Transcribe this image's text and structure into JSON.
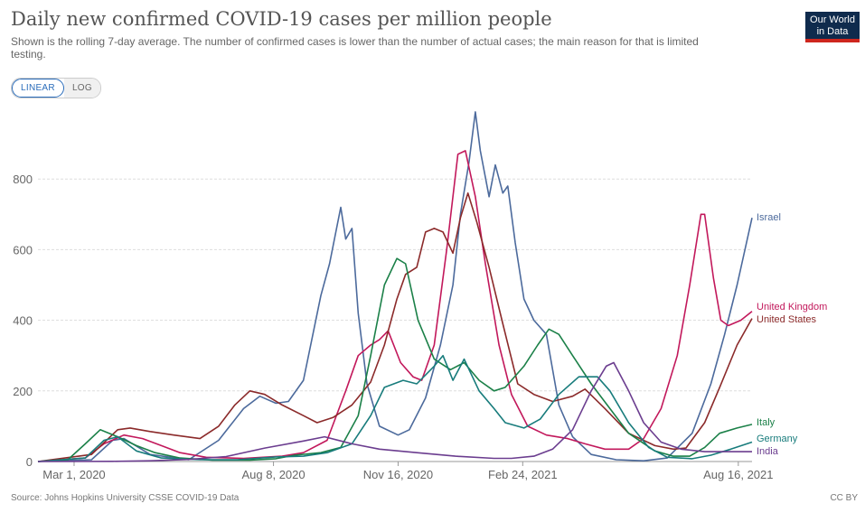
{
  "header": {
    "title": "Daily new confirmed COVID-19 cases per million people",
    "subtitle": "Shown is the rolling 7-day average. The number of confirmed cases is lower than the number of actual cases; the main reason for that is limited testing.",
    "logo_line1": "Our World",
    "logo_line2": "in Data"
  },
  "controls": {
    "linear_label": "LINEAR",
    "log_label": "LOG",
    "selected": "LINEAR"
  },
  "footer": {
    "source": "Source: Johns Hopkins University CSSE COVID-19 Data",
    "license": "CC BY"
  },
  "chart_data": {
    "type": "line",
    "title": "Daily new confirmed COVID-19 cases per million people",
    "ylim": [
      0,
      1000
    ],
    "y_ticks": [
      0,
      200,
      400,
      600,
      800
    ],
    "x_range": [
      "2020-02-01",
      "2021-08-27"
    ],
    "x_ticks": [
      {
        "date": "2020-03-01",
        "label": "Mar 1, 2020"
      },
      {
        "date": "2020-08-08",
        "label": "Aug 8, 2020"
      },
      {
        "date": "2020-11-16",
        "label": "Nov 16, 2020"
      },
      {
        "date": "2021-02-24",
        "label": "Feb 24, 2021"
      },
      {
        "date": "2021-08-16",
        "label": "Aug 16, 2021"
      }
    ],
    "grid": "horizontal dashed",
    "legend": "labels at line ends",
    "series": [
      {
        "name": "Israel",
        "color": "#4c6a9c",
        "points": [
          [
            "2020-02-01",
            0
          ],
          [
            "2020-03-15",
            5
          ],
          [
            "2020-04-01",
            60
          ],
          [
            "2020-04-10",
            65
          ],
          [
            "2020-05-01",
            20
          ],
          [
            "2020-06-01",
            5
          ],
          [
            "2020-06-25",
            60
          ],
          [
            "2020-07-15",
            150
          ],
          [
            "2020-07-28",
            185
          ],
          [
            "2020-08-10",
            165
          ],
          [
            "2020-08-20",
            170
          ],
          [
            "2020-09-01",
            230
          ],
          [
            "2020-09-15",
            470
          ],
          [
            "2020-09-22",
            560
          ],
          [
            "2020-10-01",
            720
          ],
          [
            "2020-10-05",
            630
          ],
          [
            "2020-10-10",
            660
          ],
          [
            "2020-10-15",
            420
          ],
          [
            "2020-10-22",
            220
          ],
          [
            "2020-11-01",
            100
          ],
          [
            "2020-11-16",
            75
          ],
          [
            "2020-11-25",
            90
          ],
          [
            "2020-12-08",
            180
          ],
          [
            "2020-12-20",
            330
          ],
          [
            "2020-12-30",
            500
          ],
          [
            "2021-01-05",
            700
          ],
          [
            "2021-01-12",
            850
          ],
          [
            "2021-01-17",
            990
          ],
          [
            "2021-01-21",
            880
          ],
          [
            "2021-01-28",
            750
          ],
          [
            "2021-02-02",
            840
          ],
          [
            "2021-02-08",
            760
          ],
          [
            "2021-02-12",
            780
          ],
          [
            "2021-02-18",
            620
          ],
          [
            "2021-02-25",
            460
          ],
          [
            "2021-03-05",
            400
          ],
          [
            "2021-03-15",
            360
          ],
          [
            "2021-03-25",
            160
          ],
          [
            "2021-04-05",
            70
          ],
          [
            "2021-04-20",
            20
          ],
          [
            "2021-05-10",
            5
          ],
          [
            "2021-06-01",
            2
          ],
          [
            "2021-06-20",
            10
          ],
          [
            "2021-07-10",
            80
          ],
          [
            "2021-07-25",
            220
          ],
          [
            "2021-08-05",
            360
          ],
          [
            "2021-08-15",
            500
          ],
          [
            "2021-08-27",
            690
          ]
        ]
      },
      {
        "name": "United Kingdom",
        "color": "#c2185b",
        "points": [
          [
            "2020-02-01",
            0
          ],
          [
            "2020-03-10",
            10
          ],
          [
            "2020-03-25",
            50
          ],
          [
            "2020-04-10",
            75
          ],
          [
            "2020-04-25",
            65
          ],
          [
            "2020-05-10",
            45
          ],
          [
            "2020-05-25",
            25
          ],
          [
            "2020-06-15",
            12
          ],
          [
            "2020-07-15",
            9
          ],
          [
            "2020-08-15",
            15
          ],
          [
            "2020-09-01",
            25
          ],
          [
            "2020-09-20",
            60
          ],
          [
            "2020-10-05",
            200
          ],
          [
            "2020-10-15",
            300
          ],
          [
            "2020-10-25",
            330
          ],
          [
            "2020-11-01",
            345
          ],
          [
            "2020-11-08",
            370
          ],
          [
            "2020-11-18",
            280
          ],
          [
            "2020-11-28",
            240
          ],
          [
            "2020-12-05",
            230
          ],
          [
            "2020-12-15",
            330
          ],
          [
            "2020-12-25",
            600
          ],
          [
            "2021-01-03",
            870
          ],
          [
            "2021-01-09",
            880
          ],
          [
            "2021-01-17",
            750
          ],
          [
            "2021-01-25",
            560
          ],
          [
            "2021-02-05",
            330
          ],
          [
            "2021-02-15",
            190
          ],
          [
            "2021-02-28",
            100
          ],
          [
            "2021-03-15",
            75
          ],
          [
            "2021-04-01",
            65
          ],
          [
            "2021-04-15",
            50
          ],
          [
            "2021-05-01",
            35
          ],
          [
            "2021-05-20",
            35
          ],
          [
            "2021-06-01",
            65
          ],
          [
            "2021-06-15",
            150
          ],
          [
            "2021-06-28",
            300
          ],
          [
            "2021-07-08",
            500
          ],
          [
            "2021-07-17",
            700
          ],
          [
            "2021-07-20",
            700
          ],
          [
            "2021-07-27",
            520
          ],
          [
            "2021-08-02",
            400
          ],
          [
            "2021-08-08",
            385
          ],
          [
            "2021-08-18",
            400
          ],
          [
            "2021-08-27",
            425
          ]
        ]
      },
      {
        "name": "United States",
        "color": "#8b2a2a",
        "points": [
          [
            "2020-02-01",
            0
          ],
          [
            "2020-03-15",
            20
          ],
          [
            "2020-04-05",
            90
          ],
          [
            "2020-04-15",
            95
          ],
          [
            "2020-05-01",
            85
          ],
          [
            "2020-05-20",
            75
          ],
          [
            "2020-06-10",
            65
          ],
          [
            "2020-06-25",
            100
          ],
          [
            "2020-07-08",
            160
          ],
          [
            "2020-07-20",
            200
          ],
          [
            "2020-08-01",
            190
          ],
          [
            "2020-08-15",
            160
          ],
          [
            "2020-09-01",
            130
          ],
          [
            "2020-09-12",
            110
          ],
          [
            "2020-09-25",
            125
          ],
          [
            "2020-10-10",
            160
          ],
          [
            "2020-10-25",
            225
          ],
          [
            "2020-11-05",
            330
          ],
          [
            "2020-11-15",
            460
          ],
          [
            "2020-11-22",
            530
          ],
          [
            "2020-12-01",
            550
          ],
          [
            "2020-12-08",
            650
          ],
          [
            "2020-12-15",
            660
          ],
          [
            "2020-12-22",
            650
          ],
          [
            "2020-12-30",
            590
          ],
          [
            "2021-01-05",
            690
          ],
          [
            "2021-01-11",
            760
          ],
          [
            "2021-01-18",
            680
          ],
          [
            "2021-01-28",
            550
          ],
          [
            "2021-02-08",
            390
          ],
          [
            "2021-02-20",
            220
          ],
          [
            "2021-03-05",
            190
          ],
          [
            "2021-03-20",
            170
          ],
          [
            "2021-04-05",
            185
          ],
          [
            "2021-04-15",
            205
          ],
          [
            "2021-05-01",
            150
          ],
          [
            "2021-05-20",
            80
          ],
          [
            "2021-06-10",
            45
          ],
          [
            "2021-06-25",
            35
          ],
          [
            "2021-07-05",
            38
          ],
          [
            "2021-07-20",
            110
          ],
          [
            "2021-08-01",
            210
          ],
          [
            "2021-08-15",
            330
          ],
          [
            "2021-08-27",
            405
          ]
        ]
      },
      {
        "name": "Italy",
        "color": "#1b8048",
        "points": [
          [
            "2020-02-01",
            0
          ],
          [
            "2020-02-25",
            5
          ],
          [
            "2020-03-10",
            50
          ],
          [
            "2020-03-22",
            90
          ],
          [
            "2020-04-05",
            70
          ],
          [
            "2020-04-20",
            45
          ],
          [
            "2020-05-05",
            25
          ],
          [
            "2020-05-25",
            10
          ],
          [
            "2020-06-20",
            4
          ],
          [
            "2020-07-20",
            4
          ],
          [
            "2020-08-10",
            8
          ],
          [
            "2020-08-25",
            18
          ],
          [
            "2020-09-15",
            25
          ],
          [
            "2020-10-01",
            40
          ],
          [
            "2020-10-15",
            130
          ],
          [
            "2020-10-25",
            300
          ],
          [
            "2020-11-05",
            500
          ],
          [
            "2020-11-15",
            575
          ],
          [
            "2020-11-22",
            560
          ],
          [
            "2020-12-02",
            400
          ],
          [
            "2020-12-15",
            290
          ],
          [
            "2020-12-28",
            260
          ],
          [
            "2021-01-08",
            280
          ],
          [
            "2021-01-20",
            230
          ],
          [
            "2021-02-01",
            200
          ],
          [
            "2021-02-10",
            210
          ],
          [
            "2021-02-25",
            270
          ],
          [
            "2021-03-08",
            330
          ],
          [
            "2021-03-17",
            375
          ],
          [
            "2021-03-25",
            360
          ],
          [
            "2021-04-05",
            300
          ],
          [
            "2021-04-20",
            220
          ],
          [
            "2021-05-05",
            150
          ],
          [
            "2021-05-20",
            80
          ],
          [
            "2021-06-10",
            30
          ],
          [
            "2021-06-25",
            15
          ],
          [
            "2021-07-08",
            15
          ],
          [
            "2021-07-20",
            40
          ],
          [
            "2021-08-01",
            80
          ],
          [
            "2021-08-15",
            95
          ],
          [
            "2021-08-27",
            105
          ]
        ]
      },
      {
        "name": "Germany",
        "color": "#187c7c",
        "points": [
          [
            "2020-02-01",
            0
          ],
          [
            "2020-03-10",
            10
          ],
          [
            "2020-03-25",
            60
          ],
          [
            "2020-04-05",
            70
          ],
          [
            "2020-04-20",
            30
          ],
          [
            "2020-05-10",
            10
          ],
          [
            "2020-06-10",
            5
          ],
          [
            "2020-07-10",
            5
          ],
          [
            "2020-08-10",
            13
          ],
          [
            "2020-09-01",
            15
          ],
          [
            "2020-09-20",
            25
          ],
          [
            "2020-10-10",
            50
          ],
          [
            "2020-10-25",
            130
          ],
          [
            "2020-11-05",
            210
          ],
          [
            "2020-11-20",
            230
          ],
          [
            "2020-12-01",
            220
          ],
          [
            "2020-12-15",
            270
          ],
          [
            "2020-12-22",
            300
          ],
          [
            "2020-12-30",
            230
          ],
          [
            "2021-01-08",
            290
          ],
          [
            "2021-01-20",
            200
          ],
          [
            "2021-02-01",
            150
          ],
          [
            "2021-02-10",
            110
          ],
          [
            "2021-02-25",
            95
          ],
          [
            "2021-03-10",
            120
          ],
          [
            "2021-03-25",
            190
          ],
          [
            "2021-04-10",
            240
          ],
          [
            "2021-04-25",
            240
          ],
          [
            "2021-05-05",
            200
          ],
          [
            "2021-05-20",
            110
          ],
          [
            "2021-06-05",
            40
          ],
          [
            "2021-06-20",
            12
          ],
          [
            "2021-07-10",
            8
          ],
          [
            "2021-07-25",
            18
          ],
          [
            "2021-08-10",
            35
          ],
          [
            "2021-08-27",
            55
          ]
        ]
      },
      {
        "name": "India",
        "color": "#6b3d8f",
        "points": [
          [
            "2020-02-01",
            0
          ],
          [
            "2020-04-01",
            0.5
          ],
          [
            "2020-05-01",
            2
          ],
          [
            "2020-06-01",
            6
          ],
          [
            "2020-07-01",
            14
          ],
          [
            "2020-08-01",
            38
          ],
          [
            "2020-09-01",
            58
          ],
          [
            "2020-09-18",
            70
          ],
          [
            "2020-10-10",
            50
          ],
          [
            "2020-11-01",
            35
          ],
          [
            "2020-12-01",
            25
          ],
          [
            "2021-01-01",
            15
          ],
          [
            "2021-02-01",
            9
          ],
          [
            "2021-02-15",
            9
          ],
          [
            "2021-03-05",
            15
          ],
          [
            "2021-03-20",
            35
          ],
          [
            "2021-04-05",
            90
          ],
          [
            "2021-04-20",
            200
          ],
          [
            "2021-05-02",
            270
          ],
          [
            "2021-05-08",
            280
          ],
          [
            "2021-05-20",
            200
          ],
          [
            "2021-06-01",
            110
          ],
          [
            "2021-06-15",
            55
          ],
          [
            "2021-07-01",
            35
          ],
          [
            "2021-07-20",
            28
          ],
          [
            "2021-08-10",
            28
          ],
          [
            "2021-08-27",
            28
          ]
        ]
      }
    ]
  }
}
